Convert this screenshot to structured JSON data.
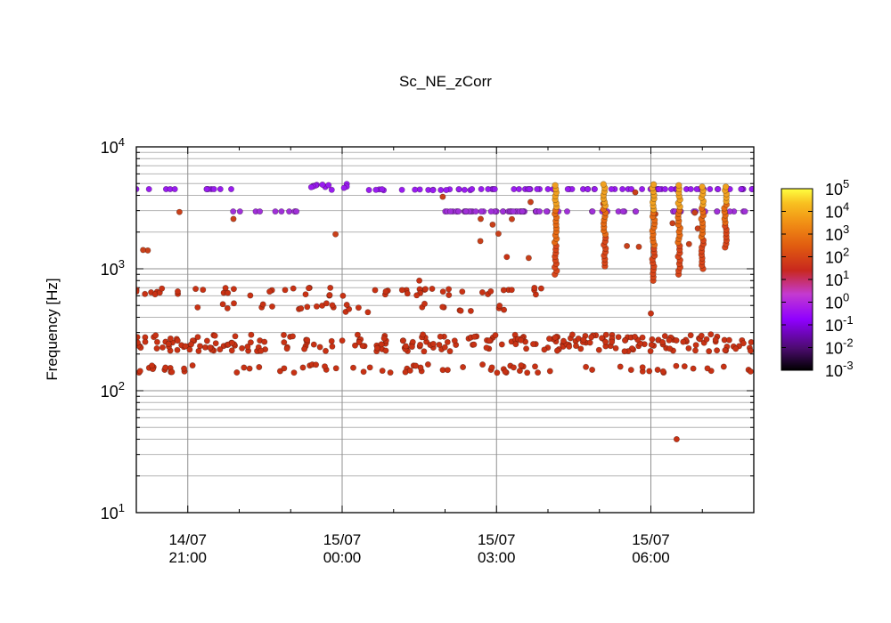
{
  "chart_data": {
    "type": "scatter",
    "title": "Sc_NE_zCorr",
    "xlabel": "",
    "ylabel": "Frequency [Hz]",
    "yscale": "log",
    "ylim": [
      10,
      10000
    ],
    "xlim": [
      "14/07 20:00",
      "15/07 08:00"
    ],
    "grid": true,
    "x_ticks": [
      {
        "date": "14/07",
        "time": "21:00",
        "hours": 1
      },
      {
        "date": "15/07",
        "time": "00:00",
        "hours": 4
      },
      {
        "date": "15/07",
        "time": "03:00",
        "hours": 7
      },
      {
        "date": "15/07",
        "time": "06:00",
        "hours": 10
      }
    ],
    "y_ticks": [
      {
        "base": "10",
        "exp": "1",
        "value": 10
      },
      {
        "base": "10",
        "exp": "2",
        "value": 100
      },
      {
        "base": "10",
        "exp": "3",
        "value": 1000
      },
      {
        "base": "10",
        "exp": "4",
        "value": 10000
      }
    ],
    "colorbar": {
      "scale": "log",
      "range": [
        0.001,
        100000
      ],
      "ticks": [
        {
          "base": "10",
          "exp": "5"
        },
        {
          "base": "10",
          "exp": "4"
        },
        {
          "base": "10",
          "exp": "3"
        },
        {
          "base": "10",
          "exp": "2"
        },
        {
          "base": "10",
          "exp": "1"
        },
        {
          "base": "10",
          "exp": "0"
        },
        {
          "base": "10",
          "exp": "-1"
        },
        {
          "base": "10",
          "exp": "-2"
        },
        {
          "base": "10",
          "exp": "-3"
        }
      ],
      "colors": [
        "#000000",
        "#4b0b6e",
        "#8f00ff",
        "#c43ad0",
        "#c8281e",
        "#e05a10",
        "#f08a14",
        "#f8c020",
        "#ffff40"
      ]
    },
    "clusters": [
      {
        "x": [
          0.0,
          2.0
        ],
        "y": [
          4500,
          4500
        ],
        "n": 12,
        "color": "#9a1cf0"
      },
      {
        "x": [
          1.8,
          3.2
        ],
        "y": [
          2950,
          2950
        ],
        "n": 10,
        "color": "#a030d8"
      },
      {
        "x": [
          3.0,
          4.2
        ],
        "y": [
          5000,
          4400
        ],
        "n": 12,
        "color": "#9a1cf0"
      },
      {
        "x": [
          4.5,
          6.5
        ],
        "y": [
          4400,
          4500
        ],
        "n": 18,
        "color": "#9a1cf0"
      },
      {
        "x": [
          6.0,
          8.0
        ],
        "y": [
          2950,
          2950
        ],
        "n": 45,
        "color": "#a030d8"
      },
      {
        "x": [
          6.5,
          12.0
        ],
        "y": [
          4500,
          4500
        ],
        "n": 55,
        "color": "#9a1cf0"
      },
      {
        "x": [
          8.2,
          12.0
        ],
        "y": [
          2950,
          2950
        ],
        "n": 25,
        "color": "#a030d8"
      },
      {
        "x": [
          0.0,
          12.0
        ],
        "y": [
          210,
          290
        ],
        "n": 260,
        "color": "#c83214"
      },
      {
        "x": [
          0.0,
          8.2
        ],
        "y": [
          140,
          165
        ],
        "n": 60,
        "color": "#c83214"
      },
      {
        "x": [
          0.0,
          8.2
        ],
        "y": [
          600,
          700
        ],
        "n": 55,
        "color": "#c83214"
      },
      {
        "x": [
          1.0,
          7.2
        ],
        "y": [
          440,
          530
        ],
        "n": 30,
        "color": "#c83214"
      },
      {
        "x": [
          8.5,
          12.0
        ],
        "y": [
          140,
          160
        ],
        "n": 18,
        "color": "#c83214"
      },
      {
        "x": [
          0.0,
          12.0
        ],
        "y": [
          1200,
          4300
        ],
        "n": 22,
        "color": "#c8401a"
      }
    ],
    "spikes": [
      {
        "x": 8.15,
        "y_range": [
          900,
          5000
        ]
      },
      {
        "x": 9.1,
        "y_range": [
          1050,
          5000
        ]
      },
      {
        "x": 10.05,
        "y_range": [
          800,
          5000
        ]
      },
      {
        "x": 10.55,
        "y_range": [
          900,
          5000
        ]
      },
      {
        "x": 11.0,
        "y_range": [
          1000,
          5000
        ]
      },
      {
        "x": 11.45,
        "y_range": [
          1500,
          5000
        ]
      }
    ],
    "outliers": [
      {
        "x": 10.5,
        "y": 40
      },
      {
        "x": 10.0,
        "y": 430
      },
      {
        "x": 5.5,
        "y": 800
      },
      {
        "x": 7.2,
        "y": 1250
      }
    ]
  }
}
